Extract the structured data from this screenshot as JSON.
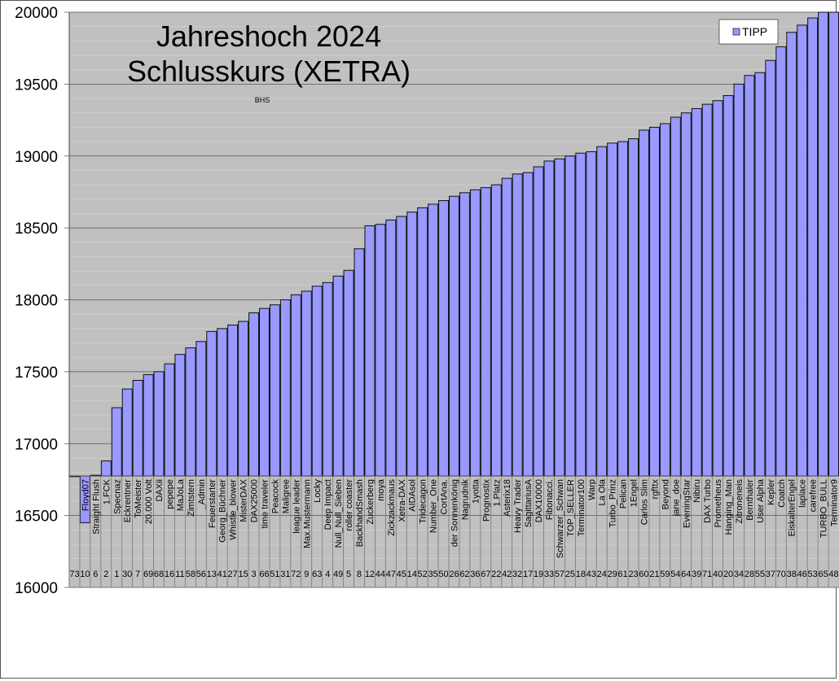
{
  "chart_data": {
    "type": "bar",
    "title": "Jahreshoch 2024",
    "subtitle": "Schlusskurs (XETRA)",
    "annotation": "BHS",
    "legend": {
      "entries": [
        "TIPP"
      ],
      "placement": "top-right"
    },
    "ylim": [
      16000,
      20000
    ],
    "yticks": [
      16000,
      16500,
      17000,
      17500,
      18000,
      18500,
      19000,
      19500,
      20000
    ],
    "minor_grid_step": 100,
    "x_axis_crosses": 16775,
    "grid": true,
    "bar_color": "#9999ff",
    "plot_bg": "#c0c0c0",
    "series": [
      {
        "name": "TIPP",
        "values": [
          16775,
          16450,
          16780,
          16880,
          17250,
          17380,
          17440,
          17480,
          17500,
          17555,
          17620,
          17666,
          17710,
          17780,
          17800,
          17825,
          17850,
          17910,
          17940,
          17965,
          18000,
          18035,
          18060,
          18095,
          18120,
          18165,
          18205,
          18355,
          18515,
          18525,
          18555,
          18580,
          18610,
          18640,
          18665,
          18690,
          18720,
          18745,
          18765,
          18780,
          18800,
          18845,
          18875,
          18885,
          18925,
          18965,
          18980,
          19000,
          19020,
          19030,
          19065,
          19090,
          19100,
          19120,
          19180,
          19200,
          19225,
          19270,
          19300,
          19330,
          19360,
          19385,
          19420,
          19500,
          19560,
          19580,
          19665,
          19760,
          19860,
          19910,
          19960,
          20000,
          20000
        ]
      }
    ],
    "categories": [
      "",
      "Floyd07",
      "Straight Flush",
      "1.FCK",
      "Specnaz",
      "Eckrentner",
      "ToMeister",
      "20.000 Volt",
      "DAXii",
      "pepepe",
      "MaJoLa",
      "Zimtstern",
      "_Admin",
      "Feuerstarter",
      "Georg_Büchner",
      "Whistle_blower",
      "MisterDAX",
      "DAX25000",
      "time traveler",
      "Peacock",
      "Maligree",
      "league leader",
      "Max.Mustermann",
      "Locky",
      "Deep Impact",
      "Null_Null_Sieben",
      "roller coaster",
      "BackhandSmash",
      "Zuckerberg",
      "moya",
      "Zickzackmaus",
      "Xetra-DAX",
      "AIDAsol",
      "Tridecagon",
      "Number_One",
      "CortAna.",
      "der Sonnenkönig",
      "Nagrudnik",
      "1yotta",
      "Prognostix",
      "1.Platz",
      "Asterix18",
      "Heavy Trader",
      "SagittariusA",
      "DAX10000",
      "Fibonacci.",
      "Schwarzer_Schwan",
      "TOP_SELLER",
      "Terminator100",
      "Warp",
      "La Ola",
      "Turbo_Prinz",
      "Pelican",
      "1Engel",
      "Carlos Slim",
      "rgfttx",
      "Beyond",
      "jane_doe",
      "EveningStar",
      "Nibiru",
      "DAX Turbo",
      "Prometheus",
      "Hanging_Man",
      "Zitroneneis",
      "Bernthaler",
      "User Alpha",
      "Kepler",
      "Coatch",
      "EiskalterEngel",
      "laplace",
      "carefree",
      "TURBO_BULL",
      "Terminator9"
    ],
    "ids": [
      "73",
      "10",
      "6",
      "2",
      "1",
      "30",
      "7",
      "69",
      "68",
      "16",
      "11",
      "58",
      "56",
      "13",
      "41",
      "27",
      "15",
      "3",
      "66",
      "51",
      "31",
      "72",
      "9",
      "63",
      "4",
      "49",
      "5",
      "8",
      "12",
      "44",
      "47",
      "45",
      "14",
      "52",
      "35",
      "50",
      "26",
      "62",
      "36",
      "67",
      "22",
      "42",
      "32",
      "17",
      "19",
      "33",
      "57",
      "25",
      "18",
      "43",
      "24",
      "29",
      "61",
      "23",
      "60",
      "21",
      "59",
      "54",
      "64",
      "39",
      "71",
      "40",
      "20",
      "34",
      "28",
      "55",
      "37",
      "70",
      "38",
      "46",
      "53",
      "65",
      "48"
    ]
  }
}
